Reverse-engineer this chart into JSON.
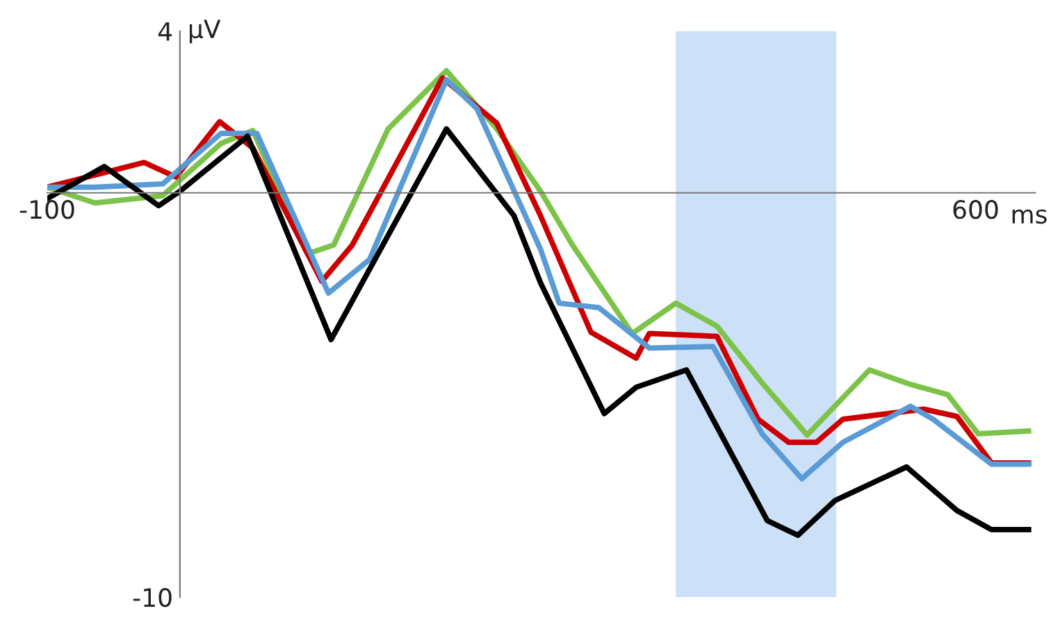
{
  "chart_data": {
    "type": "line",
    "xlabel": "ms",
    "ylabel": "µV",
    "xlim": [
      -100,
      645
    ],
    "ylim": [
      -10,
      4
    ],
    "xticks": [
      -100,
      600
    ],
    "yticks": [
      4,
      -10
    ],
    "grid": false,
    "marker": "none",
    "line_style": "solid",
    "bands": [
      {
        "axis": "x",
        "from": 374,
        "to": 495,
        "color": "#cce0f8"
      }
    ],
    "series": [
      {
        "color": "#7dc34a",
        "x": [
          -100,
          -64,
          -13,
          31,
          55,
          96,
          116,
          157,
          201,
          239,
          272,
          296,
          341,
          374,
          405,
          439,
          473,
          520,
          551,
          579,
          602,
          640
        ],
        "values": [
          0.14,
          -0.25,
          -0.07,
          1.22,
          1.54,
          -1.51,
          -1.29,
          1.58,
          3.02,
          1.58,
          0.04,
          -1.29,
          -3.48,
          -2.73,
          -3.3,
          -4.7,
          -5.99,
          -4.38,
          -4.74,
          -4.99,
          -5.96,
          -5.89
        ]
      },
      {
        "color": "#cc0000",
        "x": [
          -100,
          -27,
          -3,
          30,
          55,
          107,
          130,
          198,
          239,
          272,
          310,
          344,
          354,
          405,
          436,
          459,
          480,
          500,
          561,
          586,
          612,
          640
        ],
        "values": [
          0.14,
          0.75,
          0.39,
          1.76,
          1.11,
          -2.19,
          -1.29,
          2.84,
          1.72,
          -0.57,
          -3.45,
          -4.09,
          -3.48,
          -3.55,
          -5.6,
          -6.17,
          -6.17,
          -5.6,
          -5.35,
          -5.53,
          -6.68,
          -6.68
        ]
      },
      {
        "color": "#5b9bd5",
        "x": [
          -100,
          -64,
          -13,
          31,
          58,
          112,
          143,
          201,
          224,
          272,
          286,
          316,
          354,
          402,
          439,
          469,
          500,
          551,
          568,
          612,
          640
        ],
        "values": [
          0.14,
          0.14,
          0.22,
          1.47,
          1.47,
          -2.48,
          -1.65,
          2.8,
          2.08,
          -1.4,
          -2.73,
          -2.84,
          -3.84,
          -3.8,
          -5.96,
          -7.07,
          -6.17,
          -5.28,
          -5.6,
          -6.71,
          -6.71
        ]
      },
      {
        "color": "#000000",
        "x": [
          -100,
          -57,
          -16,
          0,
          51,
          114,
          201,
          252,
          272,
          320,
          344,
          382,
          443,
          466,
          494,
          548,
          586,
          612,
          640
        ],
        "values": [
          -0.14,
          0.65,
          -0.32,
          0.04,
          1.4,
          -3.63,
          1.58,
          -0.57,
          -2.23,
          -5.46,
          -4.81,
          -4.38,
          -8.11,
          -8.47,
          -7.61,
          -6.78,
          -7.86,
          -8.33,
          -8.33
        ]
      }
    ]
  }
}
